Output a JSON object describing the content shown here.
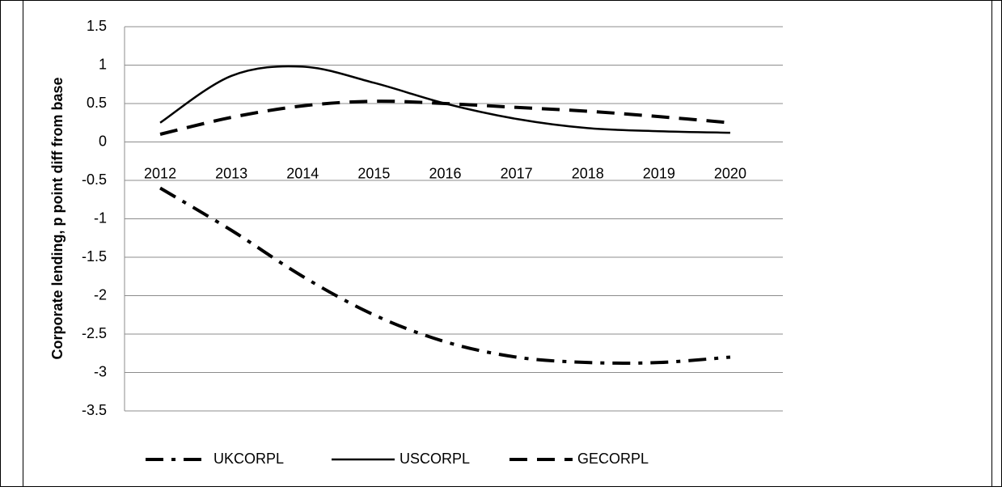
{
  "chart_data": {
    "type": "line",
    "y_label": "Corporate lending, p point diff from base",
    "categories": [
      "2012",
      "2013",
      "2014",
      "2015",
      "2016",
      "2017",
      "2018",
      "2019",
      "2020"
    ],
    "series": [
      {
        "name": "UKCORPL",
        "color": "#000000",
        "dash": "dash-dot",
        "values": [
          -0.6,
          -1.15,
          -1.75,
          -2.25,
          -2.6,
          -2.8,
          -2.87,
          -2.87,
          -2.8
        ]
      },
      {
        "name": "USCORPL",
        "color": "#000000",
        "dash": "solid",
        "values": [
          0.25,
          0.86,
          0.98,
          0.77,
          0.5,
          0.3,
          0.18,
          0.14,
          0.12
        ]
      },
      {
        "name": "GECORPL",
        "color": "#000000",
        "dash": "dash",
        "values": [
          0.1,
          0.32,
          0.47,
          0.53,
          0.5,
          0.45,
          0.4,
          0.33,
          0.25
        ]
      }
    ],
    "ylim": [
      -3.5,
      1.5
    ],
    "yticks": [
      -3.5,
      -3,
      -2.5,
      -2,
      -1.5,
      -1,
      -0.5,
      0,
      0.5,
      1,
      1.5
    ],
    "grid": true,
    "legend": "bottom"
  }
}
